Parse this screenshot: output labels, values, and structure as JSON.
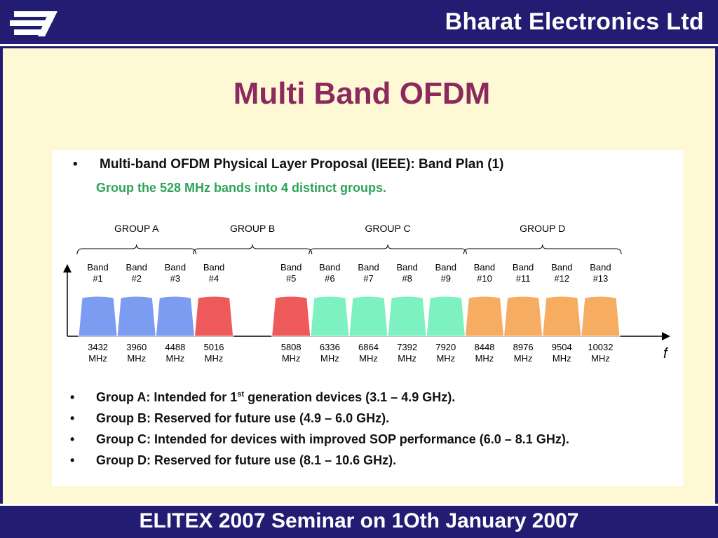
{
  "header": {
    "company": "Bharat Electronics Ltd"
  },
  "slide": {
    "title": "Multi Band OFDM"
  },
  "intro": {
    "bullet": "•",
    "line1": "Multi-band OFDM Physical Layer Proposal (IEEE): Band Plan (1)",
    "line2": "Group the 528 MHz bands into 4 distinct groups."
  },
  "chart_data": {
    "type": "bar",
    "xlabel": "f",
    "groups": [
      {
        "name": "GROUP A",
        "bands": [
          1,
          2,
          3
        ],
        "color": "#7b9cf0"
      },
      {
        "name": "GROUP B",
        "bands": [
          4,
          5
        ],
        "color": "#ee5a5a"
      },
      {
        "name": "GROUP C",
        "bands": [
          6,
          7,
          8,
          9
        ],
        "color": "#7df2c0"
      },
      {
        "name": "GROUP D",
        "bands": [
          10,
          11,
          12,
          13
        ],
        "color": "#f6ad62"
      }
    ],
    "bands": [
      {
        "label": "Band",
        "num": "#1",
        "center": "3432",
        "unit": "MHz",
        "group": "GROUP A"
      },
      {
        "label": "Band",
        "num": "#2",
        "center": "3960",
        "unit": "MHz",
        "group": "GROUP A"
      },
      {
        "label": "Band",
        "num": "#3",
        "center": "4488",
        "unit": "MHz",
        "group": "GROUP A"
      },
      {
        "label": "Band",
        "num": "#4",
        "center": "5016",
        "unit": "MHz",
        "group": "GROUP B"
      },
      {
        "label": "Band",
        "num": "#5",
        "center": "5808",
        "unit": "MHz",
        "group": "GROUP B"
      },
      {
        "label": "Band",
        "num": "#6",
        "center": "6336",
        "unit": "MHz",
        "group": "GROUP C"
      },
      {
        "label": "Band",
        "num": "#7",
        "center": "6864",
        "unit": "MHz",
        "group": "GROUP C"
      },
      {
        "label": "Band",
        "num": "#8",
        "center": "7392",
        "unit": "MHz",
        "group": "GROUP C"
      },
      {
        "label": "Band",
        "num": "#9",
        "center": "7920",
        "unit": "MHz",
        "group": "GROUP C"
      },
      {
        "label": "Band",
        "num": "#10",
        "center": "8448",
        "unit": "MHz",
        "group": "GROUP D"
      },
      {
        "label": "Band",
        "num": "#11",
        "center": "8976",
        "unit": "MHz",
        "group": "GROUP D"
      },
      {
        "label": "Band",
        "num": "#12",
        "center": "9504",
        "unit": "MHz",
        "group": "GROUP D"
      },
      {
        "label": "Band",
        "num": "#13",
        "center": "10032",
        "unit": "MHz",
        "group": "GROUP D"
      }
    ]
  },
  "bullets": [
    {
      "dot": "•",
      "pre": "Group A: Intended for 1",
      "sup": "st",
      "post": " generation devices (3.1 – 4.9 GHz)."
    },
    {
      "dot": "•",
      "pre": "Group B: Reserved for future use (4.9 – 6.0 GHz).",
      "sup": "",
      "post": ""
    },
    {
      "dot": "•",
      "pre": "Group C: Intended for devices with improved SOP performance (6.0 – 8.1 GHz).",
      "sup": "",
      "post": ""
    },
    {
      "dot": "•",
      "pre": "Group D: Reserved for future use (8.1 – 10.6 GHz).",
      "sup": "",
      "post": ""
    }
  ],
  "footer": {
    "text": "ELITEX 2007 Seminar on 1Oth January 2007"
  }
}
